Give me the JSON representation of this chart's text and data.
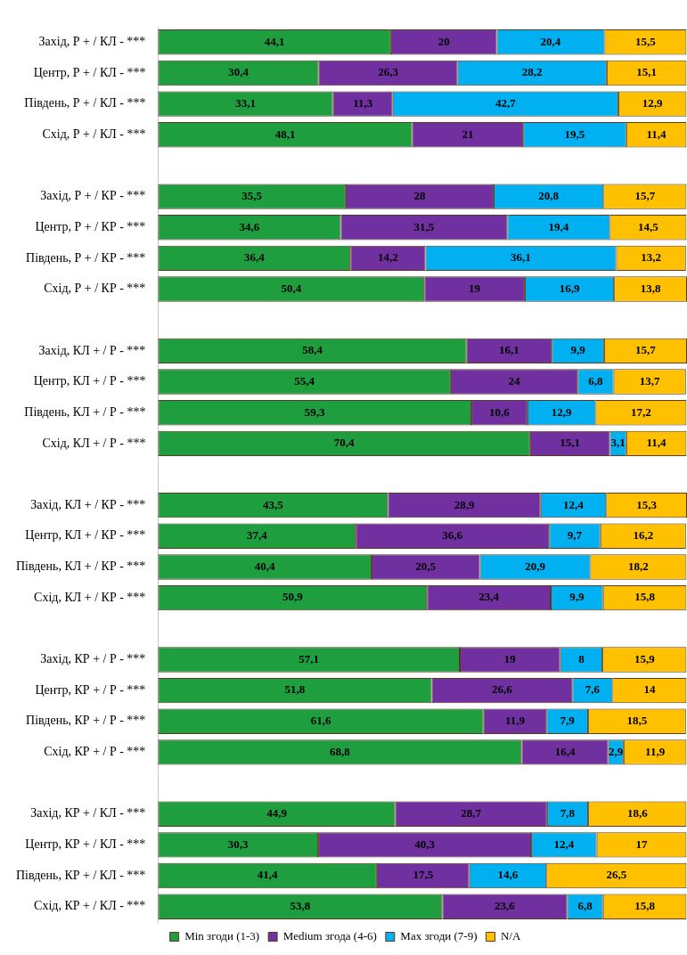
{
  "chart_data": {
    "type": "bar",
    "orientation": "horizontal",
    "stacked": true,
    "legend": "bottom",
    "tick_labels": "y",
    "grid": false,
    "categories": [
      "Захід, Р + / КЛ - ***",
      "Центр, Р + / КЛ - ***",
      "Південь, Р + / КЛ - ***",
      "Схід, Р + / КЛ - ***",
      null,
      "Захід, Р + / КР - ***",
      "Центр, Р + / КР - ***",
      "Південь, Р + / КР - ***",
      "Схід, Р + / КР - ***",
      null,
      "Захід, КЛ + / Р - ***",
      "Центр, КЛ + / Р - ***",
      "Південь, КЛ + / Р - ***",
      "Схід, КЛ + / Р - ***",
      null,
      "Захід, КЛ + / КР - ***",
      "Центр, КЛ + / КР - ***",
      "Південь, КЛ + / КР - ***",
      "Схід, КЛ + / КР - ***",
      null,
      "Захід, КР + / Р - ***",
      "Центр, КР + / Р - ***",
      "Південь, КР + / Р - ***",
      "Схід, КР + / Р - ***",
      null,
      "Захід, КР + / КЛ - ***",
      "Центр, КР + / КЛ - ***",
      "Південь, КР + / КЛ - ***",
      "Схід, КР + / КЛ - ***"
    ],
    "series": [
      {
        "name": "Min згоди (1-3)",
        "color": "#1f9e3f",
        "values": [
          44.1,
          30.4,
          33.1,
          48.1,
          null,
          35.5,
          34.6,
          36.4,
          50.4,
          null,
          58.4,
          55.4,
          59.3,
          70.4,
          null,
          43.5,
          37.4,
          40.4,
          50.9,
          null,
          57.1,
          51.8,
          61.6,
          68.8,
          null,
          44.9,
          30.3,
          41.4,
          53.8
        ],
        "value_labels": [
          "44,1",
          "30,4",
          "33,1",
          "48,1",
          null,
          "35,5",
          "34,6",
          "36,4",
          "50,4",
          null,
          "58,4",
          "55,4",
          "59,3",
          "70,4",
          null,
          "43,5",
          "37,4",
          "40,4",
          "50,9",
          null,
          "57,1",
          "51,8",
          "61,6",
          "68,8",
          null,
          "44,9",
          "30,3",
          "41,4",
          "53,8"
        ]
      },
      {
        "name": "Medium згода (4-6)",
        "color": "#7030a0",
        "values": [
          20,
          26.3,
          11.3,
          21,
          null,
          28,
          31.5,
          14.2,
          19,
          null,
          16.1,
          24,
          10.6,
          15.1,
          null,
          28.9,
          36.6,
          20.5,
          23.4,
          null,
          19,
          26.6,
          11.9,
          16.4,
          null,
          28.7,
          40.3,
          17.5,
          23.6
        ],
        "value_labels": [
          "20",
          "26,3",
          "11,3",
          "21",
          null,
          "28",
          "31,5",
          "14,2",
          "19",
          null,
          "16,1",
          "24",
          "10,6",
          "15,1",
          null,
          "28,9",
          "36,6",
          "20,5",
          "23,4",
          null,
          "19",
          "26,6",
          "11,9",
          "16,4",
          null,
          "28,7",
          "40,3",
          "17,5",
          "23,6"
        ]
      },
      {
        "name": "Max згоди (7-9)",
        "color": "#00b0f0",
        "values": [
          20.4,
          28.2,
          42.7,
          19.5,
          null,
          20.8,
          19.4,
          36.1,
          16.9,
          null,
          9.9,
          6.8,
          12.9,
          3.1,
          null,
          12.4,
          9.7,
          20.9,
          9.9,
          null,
          8,
          7.6,
          7.9,
          2.9,
          null,
          7.8,
          12.4,
          14.6,
          6.8
        ],
        "value_labels": [
          "20,4",
          "28,2",
          "42,7",
          "19,5",
          null,
          "20,8",
          "19,4",
          "36,1",
          "16,9",
          null,
          "9,9",
          "6,8",
          "12,9",
          "3,1",
          null,
          "12,4",
          "9,7",
          "20,9",
          "9,9",
          null,
          "8",
          "7,6",
          "7,9",
          "2,9",
          null,
          "7,8",
          "12,4",
          "14,6",
          "6,8"
        ]
      },
      {
        "name": "N/A",
        "color": "#ffc000",
        "values": [
          15.5,
          15.1,
          12.9,
          11.4,
          null,
          15.7,
          14.5,
          13.2,
          13.8,
          null,
          15.7,
          13.7,
          17.2,
          11.4,
          null,
          15.3,
          16.2,
          18.2,
          15.8,
          null,
          15.9,
          14,
          18.5,
          11.9,
          null,
          18.6,
          17,
          26.5,
          15.8
        ],
        "value_labels": [
          "15,5",
          "15,1",
          "12,9",
          "11,4",
          null,
          "15,7",
          "14,5",
          "13,2",
          "13,8",
          null,
          "15,7",
          "13,7",
          "17,2",
          "11,4",
          null,
          "15,3",
          "16,2",
          "18,2",
          "15,8",
          null,
          "15,9",
          "14",
          "18,5",
          "11,9",
          null,
          "18,6",
          "17",
          "26,5",
          "15,8"
        ]
      }
    ]
  }
}
